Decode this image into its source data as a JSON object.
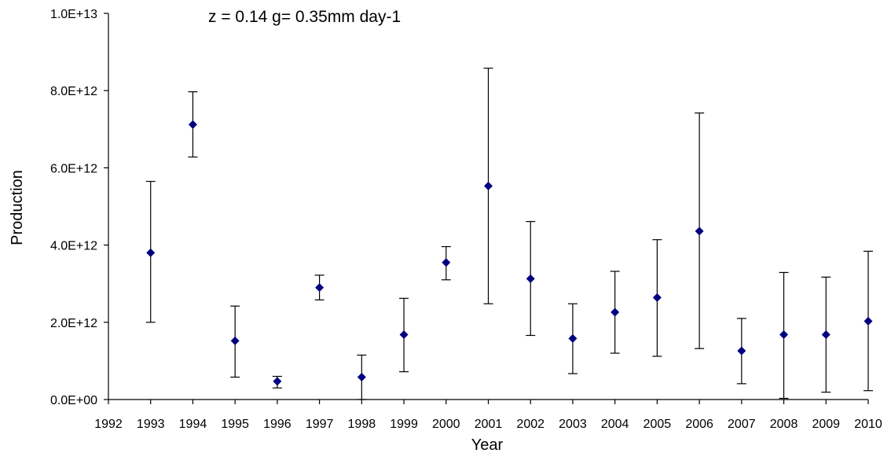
{
  "chart_data": {
    "type": "scatter",
    "title": "",
    "annotation": "z = 0.14   g= 0.35mm day-1",
    "xlabel": "Year",
    "ylabel": "Production",
    "xlim": [
      1992,
      2010
    ],
    "ylim": [
      0,
      10000000000000
    ],
    "x_ticks": [
      "1992",
      "1993",
      "1994",
      "1995",
      "1996",
      "1997",
      "1998",
      "1999",
      "2000",
      "2001",
      "2002",
      "2003",
      "2004",
      "2005",
      "2006",
      "2007",
      "2008",
      "2009",
      "2010"
    ],
    "y_ticks": [
      "0.0E+00",
      "2.0E+12",
      "4.0E+12",
      "6.0E+12",
      "8.0E+12",
      "1.0E+13"
    ],
    "y_tick_values": [
      0,
      2000000000000,
      4000000000000,
      6000000000000,
      8000000000000,
      10000000000000
    ],
    "grid": false,
    "legend": "none",
    "marker": "diamond",
    "marker_color": "#000080",
    "errorbar_color": "#000000",
    "points": [
      {
        "x": 1993,
        "y": 3800000000000,
        "low": 2000000000000,
        "high": 5650000000000
      },
      {
        "x": 1994,
        "y": 7120000000000,
        "low": 6280000000000,
        "high": 7970000000000
      },
      {
        "x": 1995,
        "y": 1520000000000,
        "low": 580000000000,
        "high": 2420000000000
      },
      {
        "x": 1996,
        "y": 470000000000,
        "low": 300000000000,
        "high": 600000000000
      },
      {
        "x": 1997,
        "y": 2900000000000,
        "low": 2580000000000,
        "high": 3220000000000
      },
      {
        "x": 1998,
        "y": 580000000000,
        "low": 0,
        "high": 1150000000000
      },
      {
        "x": 1999,
        "y": 1680000000000,
        "low": 720000000000,
        "high": 2620000000000
      },
      {
        "x": 2000,
        "y": 3550000000000,
        "low": 3100000000000,
        "high": 3960000000000
      },
      {
        "x": 2001,
        "y": 5530000000000,
        "low": 2480000000000,
        "high": 8580000000000
      },
      {
        "x": 2002,
        "y": 3130000000000,
        "low": 1660000000000,
        "high": 4610000000000
      },
      {
        "x": 2003,
        "y": 1580000000000,
        "low": 670000000000,
        "high": 2480000000000
      },
      {
        "x": 2004,
        "y": 2260000000000,
        "low": 1200000000000,
        "high": 3320000000000
      },
      {
        "x": 2005,
        "y": 2640000000000,
        "low": 1120000000000,
        "high": 4140000000000
      },
      {
        "x": 2006,
        "y": 4360000000000,
        "low": 1320000000000,
        "high": 7420000000000
      },
      {
        "x": 2007,
        "y": 1260000000000,
        "low": 410000000000,
        "high": 2100000000000
      },
      {
        "x": 2008,
        "y": 1680000000000,
        "low": 30000000000,
        "high": 3290000000000
      },
      {
        "x": 2009,
        "y": 1680000000000,
        "low": 190000000000,
        "high": 3170000000000
      },
      {
        "x": 2010,
        "y": 2030000000000,
        "low": 230000000000,
        "high": 3840000000000
      }
    ]
  }
}
